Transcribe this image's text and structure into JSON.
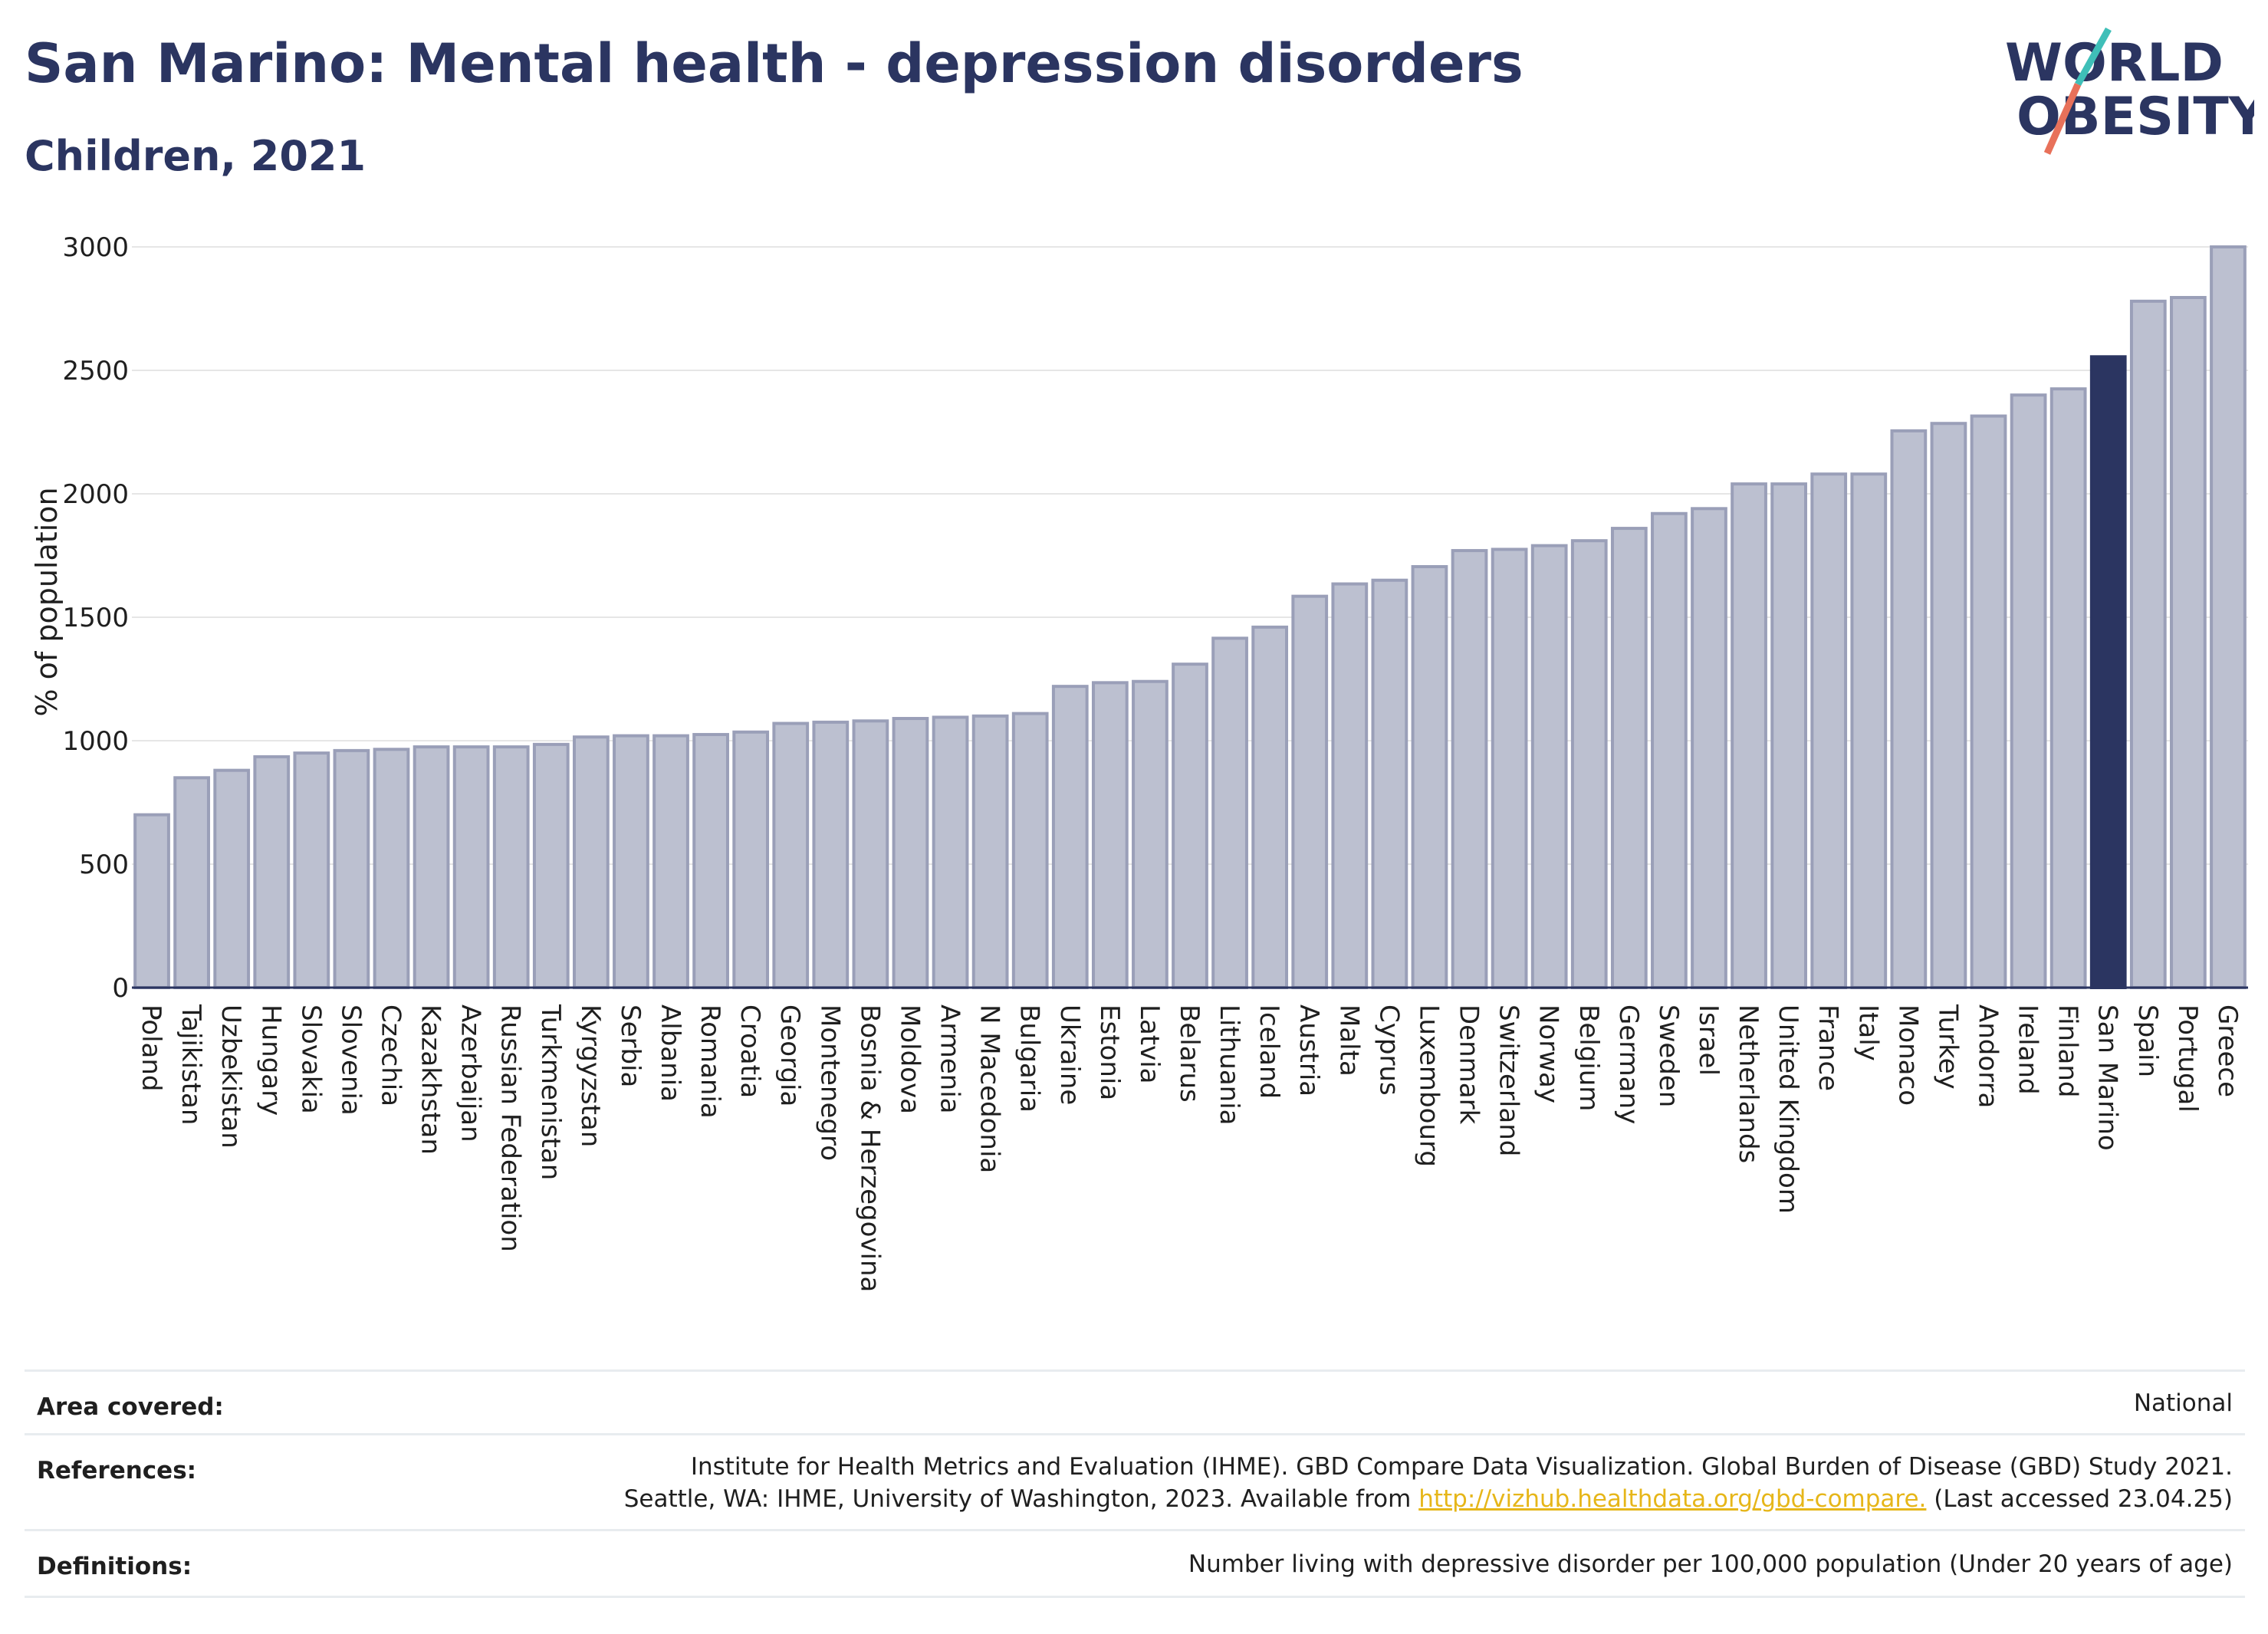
{
  "title": "San Marino: Mental health - depression disorders",
  "subtitle": "Children, 2021",
  "logo": {
    "line1": "WORLD",
    "line2": "OBESITY",
    "text_color": "#2b3561",
    "slash_teal": "#3fbfb8",
    "slash_coral": "#e8715a"
  },
  "colors": {
    "bar": "#bcc0d0",
    "bar_border": "#9a9fb8",
    "highlight": "#2b3561",
    "grid": "#e6e6e6",
    "axis": "#2b3561"
  },
  "chart_data": {
    "type": "bar",
    "ylabel": "% of population",
    "ylim": [
      0,
      3000
    ],
    "yticks": [
      0,
      500,
      1000,
      1500,
      2000,
      2500,
      3000
    ],
    "highlight": "San Marino",
    "grid": true,
    "categories": [
      "Poland",
      "Tajikistan",
      "Uzbekistan",
      "Hungary",
      "Slovakia",
      "Slovenia",
      "Czechia",
      "Kazakhstan",
      "Azerbaijan",
      "Russian Federation",
      "Turkmenistan",
      "Kyrgyzstan",
      "Serbia",
      "Albania",
      "Romania",
      "Croatia",
      "Georgia",
      "Montenegro",
      "Bosnia & Herzegovina",
      "Moldova",
      "Armenia",
      "N Macedonia",
      "Bulgaria",
      "Ukraine",
      "Estonia",
      "Latvia",
      "Belarus",
      "Lithuania",
      "Iceland",
      "Austria",
      "Malta",
      "Cyprus",
      "Luxembourg",
      "Denmark",
      "Switzerland",
      "Norway",
      "Belgium",
      "Germany",
      "Sweden",
      "Israel",
      "Netherlands",
      "United Kingdom",
      "France",
      "Italy",
      "Monaco",
      "Turkey",
      "Andorra",
      "Ireland",
      "Finland",
      "San Marino",
      "Spain",
      "Portugal",
      "Greece"
    ],
    "values": [
      700,
      850,
      880,
      935,
      950,
      960,
      965,
      975,
      975,
      975,
      985,
      1015,
      1020,
      1020,
      1025,
      1035,
      1070,
      1075,
      1080,
      1090,
      1095,
      1100,
      1110,
      1220,
      1235,
      1240,
      1310,
      1415,
      1460,
      1585,
      1635,
      1650,
      1705,
      1770,
      1775,
      1790,
      1810,
      1860,
      1920,
      1940,
      2040,
      2040,
      2080,
      2080,
      2255,
      2285,
      2315,
      2400,
      2425,
      2555,
      2780,
      2795,
      3000
    ]
  },
  "info": {
    "area_label": "Area covered:",
    "area_value": "National",
    "references_label": "References:",
    "references_line1": "Institute for Health Metrics and Evaluation (IHME). GBD Compare Data Visualization. Global Burden of Disease (GBD) Study 2021.",
    "references_line2_pre": "Seattle, WA: IHME, University of Washington, 2023. Available from ",
    "references_link": "http://vizhub.healthdata.org/gbd-compare.",
    "references_line2_post": " (Last accessed 23.04.25)",
    "definitions_label": "Definitions:",
    "definitions_value": "Number living with depressive disorder per 100,000 population (Under 20 years of age)"
  }
}
